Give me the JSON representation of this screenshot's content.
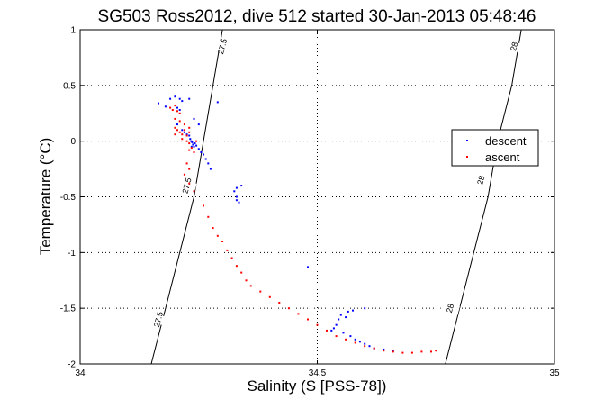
{
  "chart_data": {
    "type": "scatter",
    "title": "SG503 Ross2012, dive 512 started 30-Jan-2013 05:48:46",
    "xlabel": "Salinity (S [PSS-78])",
    "ylabel": "Temperature (°C)",
    "xlim": [
      34,
      35
    ],
    "ylim": [
      -2,
      1
    ],
    "x_ticks": [
      "34",
      "34.5",
      "35"
    ],
    "y_ticks": [
      "-2",
      "-1.5",
      "-1",
      "-0.5",
      "0",
      "0.5",
      "1"
    ],
    "grid": true,
    "legend": {
      "placement": "right",
      "entries": [
        "descent",
        "ascent"
      ]
    },
    "colors": {
      "descent": "#0000ff",
      "ascent": "#ff0000",
      "contour": "#000000"
    },
    "contours": [
      {
        "label": "27.5",
        "line": [
          [
            34.15,
            -2.0
          ],
          [
            34.18,
            -1.5
          ],
          [
            34.21,
            -1.0
          ],
          [
            34.24,
            -0.5
          ],
          [
            34.26,
            0.0
          ],
          [
            34.28,
            0.5
          ],
          [
            34.3,
            1.0
          ]
        ],
        "label_points": [
          [
            34.165,
            -1.6
          ],
          [
            34.225,
            -0.4
          ],
          [
            34.3,
            0.85
          ]
        ]
      },
      {
        "label": "28",
        "line": [
          [
            34.77,
            -2.0
          ],
          [
            34.8,
            -1.5
          ],
          [
            34.83,
            -1.0
          ],
          [
            34.86,
            -0.5
          ],
          [
            34.88,
            0.0
          ],
          [
            34.91,
            0.5
          ],
          [
            34.93,
            1.0
          ]
        ],
        "label_points": [
          [
            34.78,
            -1.5
          ],
          [
            34.845,
            -0.35
          ],
          [
            34.915,
            0.85
          ]
        ]
      }
    ],
    "series": [
      {
        "name": "descent",
        "points": [
          [
            34.165,
            0.34
          ],
          [
            34.18,
            0.31
          ],
          [
            34.19,
            0.38
          ],
          [
            34.2,
            0.4
          ],
          [
            34.21,
            0.38
          ],
          [
            34.215,
            0.36
          ],
          [
            34.23,
            0.38
          ],
          [
            34.29,
            0.35
          ],
          [
            34.205,
            0.3
          ],
          [
            34.21,
            0.28
          ],
          [
            34.205,
            0.15
          ],
          [
            34.215,
            0.1
          ],
          [
            34.22,
            0.08
          ],
          [
            34.225,
            0.06
          ],
          [
            34.23,
            0.05
          ],
          [
            34.232,
            0.02
          ],
          [
            34.234,
            0.0
          ],
          [
            34.236,
            -0.01
          ],
          [
            34.238,
            -0.03
          ],
          [
            34.24,
            -0.05
          ],
          [
            34.242,
            -0.02
          ],
          [
            34.245,
            -0.04
          ],
          [
            34.25,
            -0.07
          ],
          [
            34.255,
            -0.1
          ],
          [
            34.26,
            -0.12
          ],
          [
            34.265,
            -0.16
          ],
          [
            34.27,
            -0.2
          ],
          [
            34.275,
            -0.25
          ],
          [
            34.24,
            0.2
          ],
          [
            34.25,
            0.15
          ],
          [
            34.235,
            -0.05
          ],
          [
            34.325,
            -0.45
          ],
          [
            34.33,
            -0.5
          ],
          [
            34.33,
            -0.53
          ],
          [
            34.335,
            -0.55
          ],
          [
            34.33,
            -0.42
          ],
          [
            34.34,
            -0.4
          ],
          [
            34.48,
            -1.13
          ],
          [
            34.53,
            -1.7
          ],
          [
            34.535,
            -1.68
          ],
          [
            34.54,
            -1.65
          ],
          [
            34.545,
            -1.6
          ],
          [
            34.55,
            -1.56
          ],
          [
            34.56,
            -1.58
          ],
          [
            34.565,
            -1.53
          ],
          [
            34.575,
            -1.52
          ],
          [
            34.6,
            -1.5
          ],
          [
            34.555,
            -1.72
          ],
          [
            34.57,
            -1.75
          ],
          [
            34.58,
            -1.78
          ],
          [
            34.59,
            -1.8
          ],
          [
            34.6,
            -1.82
          ],
          [
            34.61,
            -1.84
          ],
          [
            34.62,
            -1.86
          ],
          [
            34.64,
            -1.87
          ],
          [
            34.66,
            -1.88
          ]
        ]
      },
      {
        "name": "ascent",
        "points": [
          [
            34.19,
            0.3
          ],
          [
            34.195,
            0.28
          ],
          [
            34.2,
            0.32
          ],
          [
            34.205,
            0.27
          ],
          [
            34.21,
            0.25
          ],
          [
            34.2,
            0.2
          ],
          [
            34.21,
            0.18
          ],
          [
            34.2,
            0.12
          ],
          [
            34.205,
            0.1
          ],
          [
            34.21,
            0.08
          ],
          [
            34.215,
            0.06
          ],
          [
            34.22,
            0.1
          ],
          [
            34.225,
            0.05
          ],
          [
            34.23,
            0.08
          ],
          [
            34.22,
            0.15
          ],
          [
            34.23,
            0.12
          ],
          [
            34.2,
            0.06
          ],
          [
            34.215,
            0.02
          ],
          [
            34.225,
            0.0
          ],
          [
            34.23,
            -0.02
          ],
          [
            34.235,
            -0.06
          ],
          [
            34.24,
            -0.1
          ],
          [
            34.245,
            0.0
          ],
          [
            34.23,
            -0.08
          ],
          [
            34.225,
            -0.2
          ],
          [
            34.23,
            -0.25
          ],
          [
            34.22,
            -0.3
          ],
          [
            34.23,
            -0.38
          ],
          [
            34.24,
            -0.45
          ],
          [
            34.26,
            -0.58
          ],
          [
            34.27,
            -0.68
          ],
          [
            34.28,
            -0.78
          ],
          [
            34.29,
            -0.85
          ],
          [
            34.3,
            -0.9
          ],
          [
            34.31,
            -0.98
          ],
          [
            34.32,
            -1.05
          ],
          [
            34.33,
            -1.12
          ],
          [
            34.34,
            -1.18
          ],
          [
            34.35,
            -1.25
          ],
          [
            34.36,
            -1.3
          ],
          [
            34.38,
            -1.35
          ],
          [
            34.4,
            -1.4
          ],
          [
            34.42,
            -1.45
          ],
          [
            34.44,
            -1.5
          ],
          [
            34.46,
            -1.55
          ],
          [
            34.48,
            -1.6
          ],
          [
            34.5,
            -1.65
          ],
          [
            34.52,
            -1.7
          ],
          [
            34.54,
            -1.75
          ],
          [
            34.56,
            -1.78
          ],
          [
            34.58,
            -1.81
          ],
          [
            34.6,
            -1.84
          ],
          [
            34.62,
            -1.86
          ],
          [
            34.64,
            -1.88
          ],
          [
            34.66,
            -1.89
          ],
          [
            34.68,
            -1.9
          ],
          [
            34.7,
            -1.9
          ],
          [
            34.72,
            -1.89
          ],
          [
            34.74,
            -1.89
          ],
          [
            34.75,
            -1.88
          ]
        ]
      }
    ]
  }
}
